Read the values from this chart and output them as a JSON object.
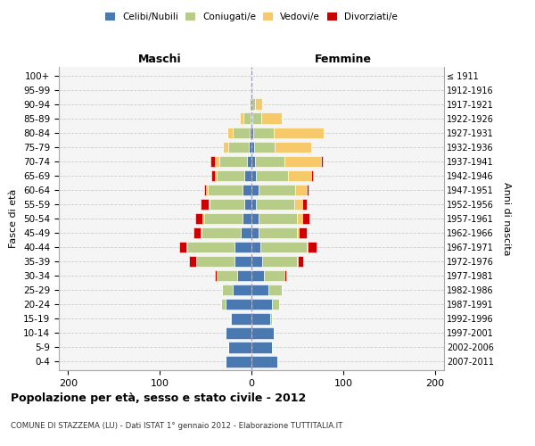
{
  "age_groups": [
    "0-4",
    "5-9",
    "10-14",
    "15-19",
    "20-24",
    "25-29",
    "30-34",
    "35-39",
    "40-44",
    "45-49",
    "50-54",
    "55-59",
    "60-64",
    "65-69",
    "70-74",
    "75-79",
    "80-84",
    "85-89",
    "90-94",
    "95-99",
    "100+"
  ],
  "birth_years": [
    "2007-2011",
    "2002-2006",
    "1997-2001",
    "1992-1996",
    "1987-1991",
    "1982-1986",
    "1977-1981",
    "1972-1976",
    "1967-1971",
    "1962-1966",
    "1957-1961",
    "1952-1956",
    "1947-1951",
    "1942-1946",
    "1937-1941",
    "1932-1936",
    "1927-1931",
    "1922-1926",
    "1917-1921",
    "1912-1916",
    "≤ 1911"
  ],
  "maschi": {
    "celibi": [
      28,
      25,
      28,
      22,
      28,
      20,
      16,
      18,
      18,
      12,
      10,
      8,
      10,
      8,
      5,
      3,
      2,
      1,
      0,
      0,
      0
    ],
    "coniugati": [
      0,
      0,
      0,
      1,
      5,
      12,
      22,
      42,
      52,
      42,
      42,
      38,
      38,
      30,
      30,
      22,
      18,
      8,
      2,
      0,
      0
    ],
    "vedovi": [
      0,
      0,
      0,
      0,
      0,
      0,
      0,
      0,
      1,
      1,
      1,
      1,
      2,
      2,
      5,
      6,
      6,
      4,
      1,
      0,
      0
    ],
    "divorziati": [
      0,
      0,
      0,
      0,
      0,
      0,
      2,
      8,
      8,
      8,
      8,
      8,
      2,
      4,
      5,
      0,
      0,
      0,
      0,
      0,
      0
    ]
  },
  "femmine": {
    "nubili": [
      28,
      22,
      24,
      20,
      22,
      18,
      14,
      12,
      10,
      8,
      8,
      5,
      8,
      5,
      4,
      3,
      2,
      1,
      0,
      0,
      0
    ],
    "coniugate": [
      0,
      0,
      0,
      2,
      8,
      15,
      22,
      38,
      50,
      42,
      42,
      42,
      40,
      35,
      32,
      22,
      22,
      10,
      4,
      1,
      0
    ],
    "vedove": [
      0,
      0,
      0,
      0,
      0,
      0,
      0,
      1,
      1,
      2,
      5,
      8,
      12,
      25,
      40,
      40,
      55,
      22,
      8,
      1,
      1
    ],
    "divorziate": [
      0,
      0,
      0,
      0,
      0,
      0,
      2,
      5,
      10,
      8,
      8,
      5,
      2,
      2,
      2,
      0,
      0,
      0,
      0,
      0,
      0
    ]
  },
  "colors": {
    "celibi": "#4a78b0",
    "coniugati": "#b8cc8a",
    "vedovi": "#f6c96a",
    "divorziati": "#cc0000"
  },
  "xlim": [
    -210,
    210
  ],
  "xticks": [
    -200,
    -100,
    0,
    100,
    200
  ],
  "xticklabels": [
    "200",
    "100",
    "0",
    "100",
    "200"
  ],
  "title": "Popolazione per età, sesso e stato civile - 2012",
  "subtitle": "COMUNE DI STAZZEMA (LU) - Dati ISTAT 1° gennaio 2012 - Elaborazione TUTTITALIA.IT",
  "ylabel_left": "Fasce di età",
  "ylabel_right": "Anni di nascita",
  "header_maschi": "Maschi",
  "header_femmine": "Femmine"
}
